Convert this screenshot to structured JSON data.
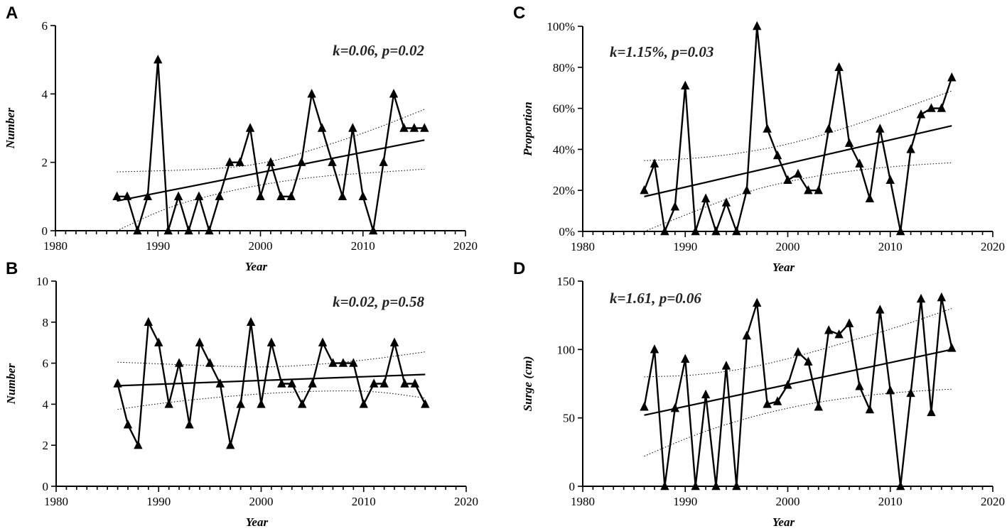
{
  "chart_data": [
    {
      "panel": "A",
      "type": "line",
      "xlabel": "Year",
      "ylabel": "Number",
      "xlim": [
        1980,
        2020
      ],
      "ylim": [
        0,
        6
      ],
      "xticks": [
        1980,
        1990,
        2000,
        2010,
        2020
      ],
      "yticks": [
        0,
        2,
        4,
        6
      ],
      "ytick_labels": [
        "0",
        "2",
        "4",
        "6"
      ],
      "annotation": "k=0.06, p=0.02",
      "annotation_pos": "top-right",
      "x": [
        1986,
        1987,
        1988,
        1989,
        1990,
        1991,
        1992,
        1993,
        1994,
        1995,
        1996,
        1997,
        1998,
        1999,
        2000,
        2001,
        2002,
        2003,
        2004,
        2005,
        2006,
        2007,
        2008,
        2009,
        2010,
        2011,
        2012,
        2013,
        2014,
        2015,
        2016
      ],
      "values": [
        1,
        1,
        0,
        1,
        5,
        0,
        1,
        0,
        1,
        0,
        1,
        2,
        2,
        3,
        1,
        2,
        1,
        1,
        2,
        4,
        3,
        2,
        1,
        3,
        1,
        0,
        2,
        4,
        3,
        3,
        3
      ],
      "trend": {
        "x": [
          1986,
          2016
        ],
        "y": [
          0.87,
          2.65
        ]
      },
      "ci_upper": {
        "x": [
          1986,
          1996,
          2001,
          2006,
          2011,
          2016
        ],
        "y": [
          1.72,
          1.8,
          2.0,
          2.45,
          2.95,
          3.55
        ]
      },
      "ci_lower": {
        "x": [
          1986,
          1991,
          1996,
          2001,
          2006,
          2011,
          2016
        ],
        "y": [
          0.0,
          0.7,
          1.1,
          1.4,
          1.6,
          1.7,
          1.8
        ]
      }
    },
    {
      "panel": "B",
      "type": "line",
      "xlabel": "Year",
      "ylabel": "Number",
      "xlim": [
        1980,
        2020
      ],
      "ylim": [
        0,
        10
      ],
      "xticks": [
        1980,
        1990,
        2000,
        2010,
        2020
      ],
      "yticks": [
        0,
        2,
        4,
        6,
        8,
        10
      ],
      "ytick_labels": [
        "0",
        "2",
        "4",
        "6",
        "8",
        "10"
      ],
      "annotation": "k=0.02, p=0.58",
      "annotation_pos": "top-right",
      "x": [
        1986,
        1987,
        1988,
        1989,
        1990,
        1991,
        1992,
        1993,
        1994,
        1995,
        1996,
        1997,
        1998,
        1999,
        2000,
        2001,
        2002,
        2003,
        2004,
        2005,
        2006,
        2007,
        2008,
        2009,
        2010,
        2011,
        2012,
        2013,
        2014,
        2015,
        2016
      ],
      "values": [
        5,
        3,
        2,
        8,
        7,
        4,
        6,
        3,
        7,
        6,
        5,
        2,
        4,
        8,
        4,
        7,
        5,
        5,
        4,
        5,
        7,
        6,
        6,
        6,
        4,
        5,
        5,
        7,
        5,
        5,
        4
      ],
      "trend": {
        "x": [
          1986,
          2016
        ],
        "y": [
          4.9,
          5.45
        ]
      },
      "ci_upper": {
        "x": [
          1986,
          1996,
          2001,
          2006,
          2011,
          2016
        ],
        "y": [
          6.05,
          5.85,
          5.8,
          5.95,
          6.2,
          6.55
        ]
      },
      "ci_lower": {
        "x": [
          1986,
          1991,
          1996,
          2001,
          2006,
          2011,
          2016
        ],
        "y": [
          3.75,
          4.1,
          4.35,
          4.55,
          4.65,
          4.65,
          4.3
        ]
      }
    },
    {
      "panel": "C",
      "type": "line",
      "xlabel": "Year",
      "ylabel": "Proportion",
      "xlim": [
        1980,
        2020
      ],
      "ylim": [
        0,
        100
      ],
      "xticks": [
        1980,
        1990,
        2000,
        2010,
        2020
      ],
      "yticks": [
        0,
        20,
        40,
        60,
        80,
        100
      ],
      "ytick_labels": [
        "0%",
        "20%",
        "40%",
        "60%",
        "80%",
        "100%"
      ],
      "annotation": "k=1.15%, p=0.03",
      "annotation_pos": "top-left",
      "x": [
        1986,
        1987,
        1988,
        1989,
        1990,
        1991,
        1992,
        1993,
        1994,
        1995,
        1996,
        1997,
        1998,
        1999,
        2000,
        2001,
        2002,
        2003,
        2004,
        2005,
        2006,
        2007,
        2008,
        2009,
        2010,
        2011,
        2012,
        2013,
        2014,
        2015,
        2016
      ],
      "values": [
        20,
        33,
        0,
        12,
        71,
        0,
        16,
        0,
        14,
        0,
        20,
        100,
        50,
        37,
        25,
        28,
        20,
        20,
        50,
        80,
        43,
        33,
        16,
        50,
        25,
        0,
        40,
        57,
        60,
        60,
        75
      ],
      "trend": {
        "x": [
          1986,
          2016
        ],
        "y": [
          17,
          51.5
        ]
      },
      "ci_upper": {
        "x": [
          1986,
          1991,
          1996,
          2001,
          2006,
          2011,
          2016
        ],
        "y": [
          34.5,
          35.5,
          38.5,
          43.5,
          51.0,
          59.5,
          68.5
        ]
      },
      "ci_lower": {
        "x": [
          1986,
          1991,
          1996,
          2001,
          2006,
          2011,
          2016
        ],
        "y": [
          -1,
          10,
          19.5,
          25.5,
          29.5,
          32.0,
          33.5
        ]
      }
    },
    {
      "panel": "D",
      "type": "line",
      "xlabel": "Year",
      "ylabel": "Surge (cm)",
      "xlim": [
        1980,
        2020
      ],
      "ylim": [
        0,
        150
      ],
      "xticks": [
        1980,
        1990,
        2000,
        2010,
        2020
      ],
      "yticks": [
        0,
        50,
        100,
        150
      ],
      "ytick_labels": [
        "0",
        "50",
        "100",
        "150"
      ],
      "annotation": "k=1.61, p=0.06",
      "annotation_pos": "top-left",
      "x": [
        1986,
        1987,
        1988,
        1989,
        1990,
        1991,
        1992,
        1993,
        1994,
        1995,
        1996,
        1997,
        1998,
        1999,
        2000,
        2001,
        2002,
        2003,
        2004,
        2005,
        2006,
        2007,
        2008,
        2009,
        2010,
        2011,
        2012,
        2013,
        2014,
        2015,
        2016
      ],
      "values": [
        58,
        100,
        0,
        57,
        93,
        0,
        67,
        0,
        88,
        0,
        110,
        134,
        60,
        62,
        74,
        98,
        91,
        58,
        114,
        111,
        119,
        73,
        56,
        129,
        70,
        0,
        68,
        137,
        54,
        138,
        101
      ],
      "trend": {
        "x": [
          1986,
          2016
        ],
        "y": [
          52,
          100
        ]
      },
      "ci_upper": {
        "x": [
          1986,
          1991,
          1996,
          2001,
          2006,
          2011,
          2016
        ],
        "y": [
          80,
          81,
          86,
          95,
          106,
          117,
          130
        ]
      },
      "ci_lower": {
        "x": [
          1986,
          1991,
          1996,
          2001,
          2006,
          2011,
          2016
        ],
        "y": [
          22,
          38,
          50,
          59,
          65,
          69,
          71
        ]
      }
    }
  ]
}
